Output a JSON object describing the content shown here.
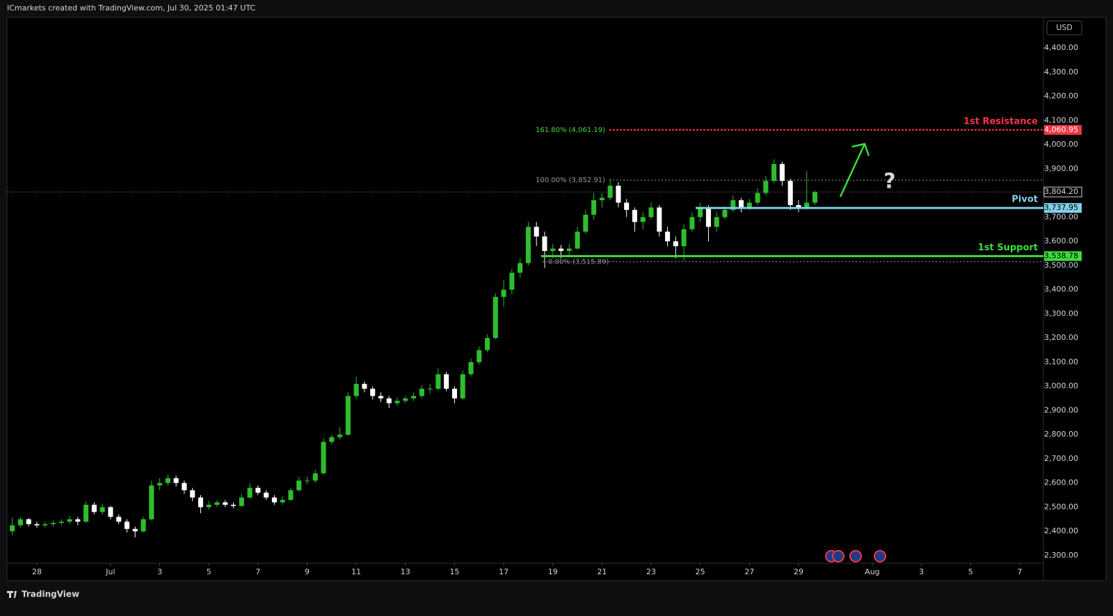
{
  "chart_data": {
    "type": "candlestick",
    "header": "ICmarkets created with TradingView.com, Jul 30, 2025 01:47 UTC",
    "currency": "USD",
    "brand": "TradingView",
    "annotation": "?",
    "up_color": "#2ebd2e",
    "down_color": "#ffffff",
    "ylim": [
      2196.4,
      4526.6
    ],
    "xlim": [
      -0.65,
      125.9
    ],
    "yticks": [
      {
        "value": 2300,
        "label": "2,300.00"
      },
      {
        "value": 2400,
        "label": "2,400.00"
      },
      {
        "value": 2500,
        "label": "2,500.00"
      },
      {
        "value": 2600,
        "label": "2,600.00"
      },
      {
        "value": 2700,
        "label": "2,700.00"
      },
      {
        "value": 2800,
        "label": "2,800.00"
      },
      {
        "value": 2900,
        "label": "2,900.00"
      },
      {
        "value": 3000,
        "label": "3,000.00"
      },
      {
        "value": 3100,
        "label": "3,100.00"
      },
      {
        "value": 3200,
        "label": "3,200.00"
      },
      {
        "value": 3300,
        "label": "3,300.00"
      },
      {
        "value": 3400,
        "label": "3,400.00"
      },
      {
        "value": 3500,
        "label": "3,500.00"
      },
      {
        "value": 3600,
        "label": "3,600.00"
      },
      {
        "value": 3700,
        "label": "3,700.00"
      },
      {
        "value": 3800,
        "label": "3,800.00"
      },
      {
        "value": 3900,
        "label": "3,900.00"
      },
      {
        "value": 4000,
        "label": "4,000.00"
      },
      {
        "value": 4100,
        "label": "4,100.00"
      },
      {
        "value": 4200,
        "label": "4,200.00"
      },
      {
        "value": 4300,
        "label": "4,300.00"
      },
      {
        "value": 4400,
        "label": "4,400.00"
      }
    ],
    "xticks": [
      {
        "value": 3,
        "label": "28"
      },
      {
        "value": 12,
        "label": "Jul"
      },
      {
        "value": 18,
        "label": "3"
      },
      {
        "value": 24,
        "label": "5"
      },
      {
        "value": 30,
        "label": "7"
      },
      {
        "value": 36,
        "label": "9"
      },
      {
        "value": 42,
        "label": "11"
      },
      {
        "value": 48,
        "label": "13"
      },
      {
        "value": 54,
        "label": "15"
      },
      {
        "value": 60,
        "label": "17"
      },
      {
        "value": 66,
        "label": "19"
      },
      {
        "value": 72,
        "label": "21"
      },
      {
        "value": 78,
        "label": "23"
      },
      {
        "value": 84,
        "label": "25"
      },
      {
        "value": 90,
        "label": "27"
      },
      {
        "value": 96,
        "label": "29"
      },
      {
        "value": 105,
        "label": "Aug"
      },
      {
        "value": 111,
        "label": "3"
      },
      {
        "value": 117,
        "label": "5"
      },
      {
        "value": 123,
        "label": "7"
      }
    ],
    "last_price": {
      "value": 3804.2,
      "label": "3,804.20"
    },
    "levels": [
      {
        "name": "1st Resistance",
        "value": 4060.95,
        "value_label": "4,060.95",
        "color": "#f23645"
      },
      {
        "name": "Pivot",
        "value": 3737.95,
        "value_label": "3,737.95",
        "color": "#7fd0ea"
      },
      {
        "name": "1st Support",
        "value": 3538.78,
        "value_label": "3,538.78",
        "color": "#3ddc3d"
      }
    ],
    "fib_levels": [
      {
        "label": "161.80% (4,061.19)",
        "value": 4061.19,
        "color": "#3ddc3d"
      },
      {
        "label": "100.00% (3,852.91)",
        "value": 3852.91,
        "color": "#9598a1"
      },
      {
        "label": "0.00% (3,515.89)",
        "value": 3515.89,
        "color": "#9598a1"
      }
    ],
    "candles": [
      [
        2400,
        2455,
        2385,
        2425
      ],
      [
        2425,
        2460,
        2415,
        2450
      ],
      [
        2450,
        2455,
        2420,
        2430
      ],
      [
        2430,
        2440,
        2415,
        2425
      ],
      [
        2425,
        2440,
        2415,
        2430
      ],
      [
        2430,
        2445,
        2420,
        2435
      ],
      [
        2435,
        2450,
        2425,
        2440
      ],
      [
        2440,
        2465,
        2430,
        2450
      ],
      [
        2450,
        2460,
        2425,
        2440
      ],
      [
        2440,
        2525,
        2435,
        2510
      ],
      [
        2510,
        2520,
        2470,
        2480
      ],
      [
        2480,
        2515,
        2470,
        2500
      ],
      [
        2500,
        2505,
        2450,
        2460
      ],
      [
        2460,
        2470,
        2430,
        2440
      ],
      [
        2440,
        2450,
        2395,
        2410
      ],
      [
        2410,
        2420,
        2375,
        2400
      ],
      [
        2400,
        2460,
        2395,
        2450
      ],
      [
        2450,
        2610,
        2445,
        2590
      ],
      [
        2590,
        2620,
        2570,
        2600
      ],
      [
        2600,
        2635,
        2590,
        2620
      ],
      [
        2620,
        2630,
        2585,
        2600
      ],
      [
        2600,
        2610,
        2555,
        2570
      ],
      [
        2570,
        2580,
        2525,
        2540
      ],
      [
        2540,
        2550,
        2475,
        2500
      ],
      [
        2500,
        2525,
        2490,
        2510
      ],
      [
        2510,
        2530,
        2500,
        2520
      ],
      [
        2520,
        2530,
        2500,
        2510
      ],
      [
        2510,
        2520,
        2495,
        2505
      ],
      [
        2505,
        2555,
        2500,
        2540
      ],
      [
        2540,
        2600,
        2535,
        2580
      ],
      [
        2580,
        2590,
        2550,
        2560
      ],
      [
        2560,
        2570,
        2530,
        2540
      ],
      [
        2540,
        2550,
        2510,
        2520
      ],
      [
        2520,
        2545,
        2510,
        2530
      ],
      [
        2530,
        2580,
        2525,
        2570
      ],
      [
        2570,
        2625,
        2565,
        2610
      ],
      [
        2610,
        2625,
        2595,
        2610
      ],
      [
        2610,
        2655,
        2600,
        2640
      ],
      [
        2640,
        2785,
        2635,
        2770
      ],
      [
        2770,
        2800,
        2760,
        2790
      ],
      [
        2790,
        2830,
        2780,
        2800
      ],
      [
        2800,
        2975,
        2795,
        2960
      ],
      [
        2960,
        3040,
        2950,
        3010
      ],
      [
        3010,
        3020,
        2975,
        2990
      ],
      [
        2990,
        3000,
        2945,
        2960
      ],
      [
        2960,
        2975,
        2935,
        2950
      ],
      [
        2950,
        2960,
        2910,
        2930
      ],
      [
        2930,
        2955,
        2920,
        2940
      ],
      [
        2940,
        2960,
        2930,
        2950
      ],
      [
        2950,
        2975,
        2940,
        2960
      ],
      [
        2960,
        3005,
        2950,
        2990
      ],
      [
        2990,
        3010,
        2970,
        2990
      ],
      [
        2990,
        3075,
        2985,
        3050
      ],
      [
        3050,
        3060,
        2980,
        2990
      ],
      [
        2990,
        3000,
        2930,
        2950
      ],
      [
        2950,
        3065,
        2945,
        3050
      ],
      [
        3050,
        3115,
        3040,
        3100
      ],
      [
        3100,
        3165,
        3090,
        3150
      ],
      [
        3150,
        3215,
        3140,
        3200
      ],
      [
        3200,
        3385,
        3195,
        3370
      ],
      [
        3370,
        3440,
        3330,
        3400
      ],
      [
        3400,
        3485,
        3380,
        3470
      ],
      [
        3470,
        3530,
        3450,
        3510
      ],
      [
        3510,
        3680,
        3500,
        3660
      ],
      [
        3660,
        3680,
        3580,
        3620
      ],
      [
        3620,
        3640,
        3490,
        3560
      ],
      [
        3560,
        3590,
        3530,
        3570
      ],
      [
        3570,
        3585,
        3530,
        3560
      ],
      [
        3560,
        3590,
        3540,
        3570
      ],
      [
        3570,
        3660,
        3565,
        3640
      ],
      [
        3640,
        3730,
        3630,
        3710
      ],
      [
        3710,
        3800,
        3690,
        3770
      ],
      [
        3770,
        3800,
        3740,
        3780
      ],
      [
        3780,
        3860,
        3770,
        3830
      ],
      [
        3830,
        3845,
        3740,
        3760
      ],
      [
        3760,
        3775,
        3700,
        3730
      ],
      [
        3730,
        3740,
        3640,
        3680
      ],
      [
        3680,
        3720,
        3650,
        3700
      ],
      [
        3700,
        3760,
        3690,
        3740
      ],
      [
        3740,
        3750,
        3620,
        3640
      ],
      [
        3640,
        3660,
        3580,
        3600
      ],
      [
        3600,
        3620,
        3530,
        3580
      ],
      [
        3580,
        3670,
        3520,
        3650
      ],
      [
        3650,
        3720,
        3640,
        3700
      ],
      [
        3700,
        3760,
        3680,
        3740
      ],
      [
        3740,
        3750,
        3600,
        3660
      ],
      [
        3660,
        3720,
        3640,
        3700
      ],
      [
        3700,
        3745,
        3690,
        3730
      ],
      [
        3730,
        3790,
        3720,
        3770
      ],
      [
        3770,
        3780,
        3720,
        3740
      ],
      [
        3740,
        3775,
        3730,
        3760
      ],
      [
        3760,
        3820,
        3750,
        3800
      ],
      [
        3800,
        3870,
        3790,
        3850
      ],
      [
        3850,
        3940,
        3840,
        3920
      ],
      [
        3920,
        3930,
        3830,
        3850
      ],
      [
        3850,
        3860,
        3730,
        3750
      ],
      [
        3750,
        3770,
        3720,
        3740
      ],
      [
        3740,
        3890,
        3730,
        3760
      ],
      [
        3760,
        3810,
        3750,
        3804.2
      ]
    ]
  }
}
